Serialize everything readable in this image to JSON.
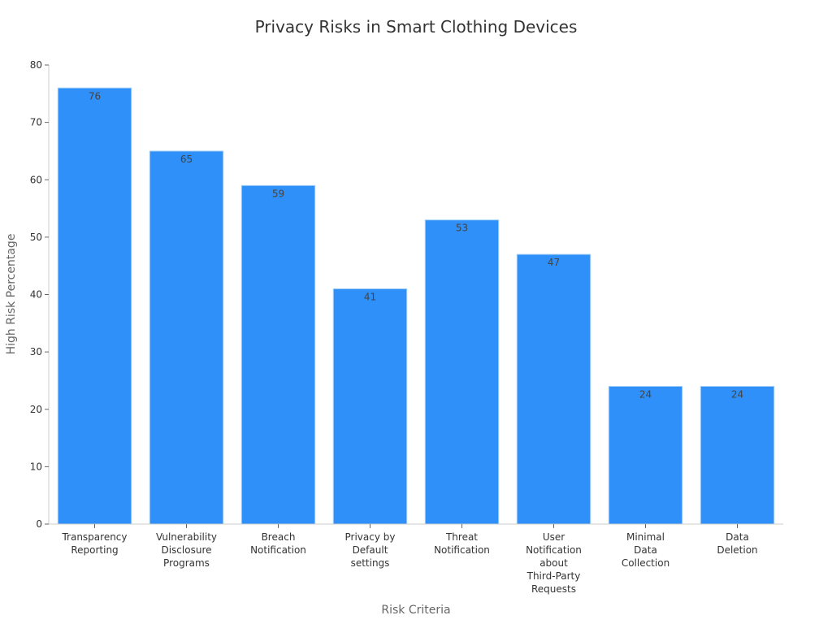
{
  "chart_data": {
    "type": "bar",
    "title": "Privacy Risks in Smart Clothing Devices",
    "xlabel": "Risk Criteria",
    "ylabel": "High Risk Percentage",
    "categories": [
      "Transparency Reporting",
      "Vulnerability Disclosure Programs",
      "Breach Notification",
      "Privacy by Default settings",
      "Threat Notification",
      "User Notification about Third-Party Requests",
      "Minimal Data Collection",
      "Data Deletion"
    ],
    "category_lines": [
      [
        "Transparency",
        "Reporting"
      ],
      [
        "Vulnerability",
        "Disclosure",
        "Programs"
      ],
      [
        "Breach",
        "Notification"
      ],
      [
        "Privacy by",
        "Default",
        "settings"
      ],
      [
        "Threat",
        "Notification"
      ],
      [
        "User",
        "Notification",
        "about",
        "Third-Party",
        "Requests"
      ],
      [
        "Minimal",
        "Data",
        "Collection"
      ],
      [
        "Data",
        "Deletion"
      ]
    ],
    "values": [
      76,
      65,
      59,
      41,
      53,
      47,
      24,
      24
    ],
    "ylim": [
      0,
      80
    ],
    "yticks": [
      0,
      10,
      20,
      30,
      40,
      50,
      60,
      70,
      80
    ],
    "grid": false,
    "legend": "none",
    "bar_color": "#2e90f8",
    "bar_edge_color": "#a6cff8"
  }
}
